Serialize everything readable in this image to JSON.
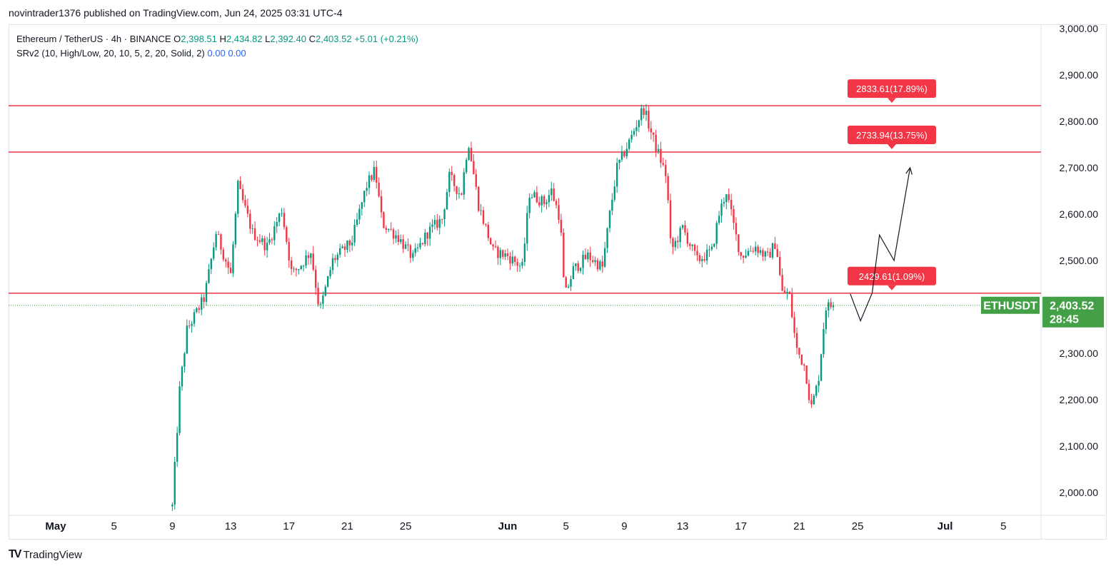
{
  "header": {
    "publisher_line": "novintrader1376 published on TradingView.com, Jun 24, 2025 03:31 UTC-4"
  },
  "legend": {
    "symbol_line": "Ethereum / TetherUS · 4h · BINANCE",
    "o_label": "O",
    "o_value": "2,398.51",
    "h_label": "H",
    "h_value": "2,434.82",
    "l_label": "L",
    "l_value": "2,392.40",
    "c_label": "C",
    "c_value": "2,403.52",
    "change": "+5.01 (+0.21%)",
    "indicator": "SRv2 (10, High/Low, 20, 10, 5, 2, 20, Solid, 2)",
    "ind_v1": "0.00",
    "ind_v2": "0.00"
  },
  "footer": {
    "brand": "TradingView"
  },
  "colors": {
    "up": "#089981",
    "down": "#f23645",
    "level": "#f23645",
    "price_tag": "#43a047",
    "axis_text": "#131722"
  },
  "chart_data": {
    "type": "candlestick",
    "symbol": "ETHUSDT",
    "interval": "4h",
    "ylim": [
      1960,
      3040
    ],
    "y_ticks": [
      "2,000.00",
      "2,100.00",
      "2,200.00",
      "2,300.00",
      "2,400.00",
      "2,500.00",
      "2,600.00",
      "2,700.00",
      "2,800.00",
      "2,900.00",
      "3,000.00"
    ],
    "y_tick_values": [
      2000,
      2100,
      2200,
      2300,
      2400,
      2500,
      2600,
      2700,
      2800,
      2900,
      3000
    ],
    "x_ticks": [
      {
        "label": "May",
        "day": 1,
        "major": true
      },
      {
        "label": "5",
        "day": 5
      },
      {
        "label": "9",
        "day": 9
      },
      {
        "label": "13",
        "day": 13
      },
      {
        "label": "17",
        "day": 17
      },
      {
        "label": "21",
        "day": 21
      },
      {
        "label": "25",
        "day": 25
      },
      {
        "label": "Jun",
        "day": 32,
        "major": true
      },
      {
        "label": "5",
        "day": 36
      },
      {
        "label": "9",
        "day": 40
      },
      {
        "label": "13",
        "day": 44
      },
      {
        "label": "17",
        "day": 48
      },
      {
        "label": "21",
        "day": 52
      },
      {
        "label": "25",
        "day": 56
      },
      {
        "label": "Jul",
        "day": 62,
        "major": true
      },
      {
        "label": "5",
        "day": 66
      }
    ],
    "levels": [
      {
        "price": 2833.61,
        "label": "2833.61(17.89%)"
      },
      {
        "price": 2733.94,
        "label": "2733.94(13.75%)"
      },
      {
        "price": 2429.61,
        "label": "2429.61(1.09%)"
      }
    ],
    "last_price": {
      "symbol": "ETHUSDT",
      "value": 2403.52,
      "label": "2,403.52",
      "countdown": "28:45"
    },
    "projection_path": [
      [
        55.5,
        2428
      ],
      [
        56.2,
        2370
      ],
      [
        57.0,
        2430
      ],
      [
        57.5,
        2555
      ],
      [
        58.5,
        2500
      ],
      [
        59.6,
        2700
      ]
    ],
    "anchors": [
      [
        9.0,
        1970
      ],
      [
        9.5,
        2220
      ],
      [
        10.0,
        2350
      ],
      [
        11.2,
        2420
      ],
      [
        12.0,
        2560
      ],
      [
        13.0,
        2470
      ],
      [
        13.5,
        2660
      ],
      [
        14.5,
        2560
      ],
      [
        15.5,
        2530
      ],
      [
        16.5,
        2610
      ],
      [
        17.2,
        2470
      ],
      [
        17.8,
        2490
      ],
      [
        18.5,
        2520
      ],
      [
        19.1,
        2390
      ],
      [
        20.0,
        2500
      ],
      [
        21.3,
        2540
      ],
      [
        22.3,
        2660
      ],
      [
        22.9,
        2695
      ],
      [
        23.4,
        2580
      ],
      [
        24.5,
        2550
      ],
      [
        25.5,
        2505
      ],
      [
        26.5,
        2560
      ],
      [
        27.5,
        2590
      ],
      [
        28.0,
        2680
      ],
      [
        28.8,
        2640
      ],
      [
        29.3,
        2760
      ],
      [
        30.0,
        2620
      ],
      [
        31.0,
        2520
      ],
      [
        32.0,
        2510
      ],
      [
        33.0,
        2485
      ],
      [
        33.5,
        2645
      ],
      [
        34.5,
        2625
      ],
      [
        35.0,
        2650
      ],
      [
        35.6,
        2590
      ],
      [
        35.9,
        2420
      ],
      [
        36.5,
        2480
      ],
      [
        37.5,
        2510
      ],
      [
        38.5,
        2485
      ],
      [
        39.0,
        2600
      ],
      [
        39.5,
        2700
      ],
      [
        40.4,
        2760
      ],
      [
        41.3,
        2830
      ],
      [
        42.0,
        2760
      ],
      [
        42.9,
        2680
      ],
      [
        43.2,
        2520
      ],
      [
        44.0,
        2570
      ],
      [
        45.0,
        2500
      ],
      [
        46.0,
        2520
      ],
      [
        46.5,
        2600
      ],
      [
        47.0,
        2650
      ],
      [
        47.6,
        2560
      ],
      [
        48.0,
        2510
      ],
      [
        49.0,
        2530
      ],
      [
        49.8,
        2505
      ],
      [
        50.4,
        2540
      ],
      [
        50.8,
        2430
      ],
      [
        51.3,
        2430
      ],
      [
        51.8,
        2310
      ],
      [
        52.4,
        2270
      ],
      [
        52.8,
        2180
      ],
      [
        53.3,
        2240
      ],
      [
        53.8,
        2400
      ],
      [
        54.4,
        2403.52
      ]
    ]
  }
}
